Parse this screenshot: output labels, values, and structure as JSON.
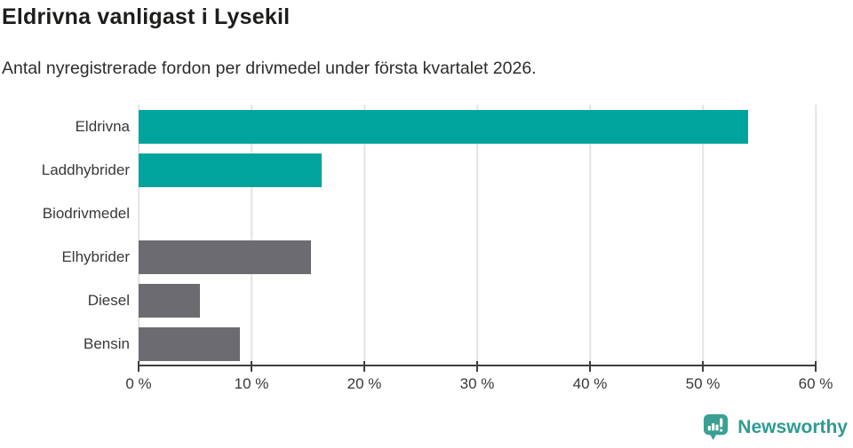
{
  "header": {
    "title": "Eldrivna vanligast i Lysekil",
    "subtitle": "Antal nyregistrerade fordon per drivmedel under första kvartalet 2026."
  },
  "chart_data": {
    "type": "bar",
    "orientation": "horizontal",
    "title": "Eldrivna vanligast i Lysekil",
    "subtitle": "Antal nyregistrerade fordon per drivmedel under första kvartalet 2026.",
    "categories": [
      "Eldrivna",
      "Laddhybrider",
      "Biodrivmedel",
      "Elhybrider",
      "Diesel",
      "Bensin"
    ],
    "values": [
      54,
      16.2,
      0,
      15.3,
      5.4,
      9
    ],
    "unit": "%",
    "xlim": [
      0,
      60
    ],
    "xticks": [
      0,
      10,
      20,
      30,
      40,
      50,
      60
    ],
    "xtick_labels": [
      "0 %",
      "10 %",
      "20 %",
      "30 %",
      "40 %",
      "50 %",
      "60 %"
    ],
    "bar_colors": [
      "#00a49c",
      "#00a49c",
      "#00a49c",
      "#6c6c70",
      "#6c6c70",
      "#6c6c70"
    ],
    "grid": true,
    "gridline_color": "#e3e3e3",
    "axis_color": "#3e3e3e",
    "highlight_color": "#00a49c",
    "default_color": "#6c6c70",
    "legend": "none"
  },
  "footer": {
    "brand": "Newsworthy",
    "brand_color": "#2e9b92",
    "logo_icon": "bar-chart-speech-bubble-icon",
    "logo_color": "#3aa093"
  }
}
